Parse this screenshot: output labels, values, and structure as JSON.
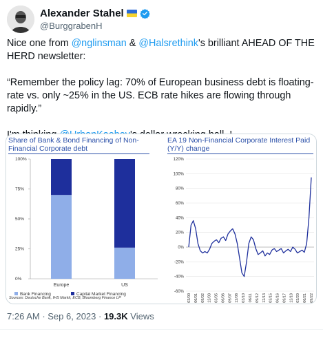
{
  "author": {
    "name": "Alexander Stahel",
    "handle": "@BurggrabenH",
    "avatar_icon": "avatar-icon",
    "flag_icon": "ukraine-flag-icon",
    "verified_icon": "verified-badge-icon",
    "verified_color": "#1d9bf0"
  },
  "tweet": {
    "p1": {
      "t1": "Nice one from ",
      "m1": "@nglinsman",
      "t2": " & ",
      "m2": "@Halsrethink",
      "t3": "'s brilliant AHEAD OF THE HERD newsletter:"
    },
    "p2": "“Remember the policy lag: 70% of European business debt is floating-rate vs. only ~25% in the US. ECB rate hikes are flowing through rapidly.”",
    "p3": {
      "t1": "I'm thinking ",
      "m1": "@UrbanKaoboy",
      "t2": "'s dollar wrecking ball..!"
    },
    "mention_color": "#1d9bf0"
  },
  "media": {
    "left": {
      "title_line1": "Share of Bank & Bond Financing of Non-",
      "title_line2": "Financial Corporate debt",
      "source": "Sources: Deutsche Bank, IHS Markit, ECB, Bloomberg Finance LP"
    },
    "right": {
      "title_line1": "EA 19 Non-Financial Corporate Interest Paid",
      "title_line2": "(Y/Y) change"
    },
    "title_color": "#2a4fa8"
  },
  "chart_data": [
    {
      "type": "bar",
      "stacked": true,
      "categories": [
        "Europe",
        "US"
      ],
      "series": [
        {
          "name": "Bank Financing",
          "values": [
            70,
            26
          ],
          "color": "#8faee8"
        },
        {
          "name": "Capital Market Financing",
          "values": [
            30,
            74
          ],
          "color": "#1e2f9c"
        }
      ],
      "ylim": [
        0,
        100
      ],
      "yticks": [
        "0%",
        "25%",
        "50%",
        "75%",
        "100%"
      ],
      "yticks_values": [
        0,
        25,
        50,
        75,
        100
      ],
      "legend_position": "bottom",
      "grid": false
    },
    {
      "type": "line",
      "series": [
        {
          "values": [
            0,
            30,
            36,
            25,
            5,
            -5,
            -8,
            -6,
            -8,
            -3,
            5,
            8,
            10,
            6,
            12,
            14,
            9,
            18,
            22,
            25,
            18,
            5,
            -15,
            -35,
            -40,
            -20,
            5,
            14,
            10,
            -2,
            -10,
            -8,
            -5,
            -12,
            -8,
            -10,
            -4,
            -2,
            -6,
            -4,
            -2,
            -8,
            -5,
            -3,
            -6,
            0,
            -3,
            -8,
            -6,
            -4,
            -7,
            5,
            40,
            95
          ],
          "color": "#1e2f9c"
        }
      ],
      "ylim": [
        -60,
        120
      ],
      "yticks": [
        "-60%",
        "-40%",
        "-20%",
        "0%",
        "20%",
        "40%",
        "60%",
        "80%",
        "100%",
        "120%"
      ],
      "yticks_values": [
        -60,
        -40,
        -20,
        0,
        20,
        40,
        60,
        80,
        100,
        120
      ],
      "xticks": [
        "03/00",
        "06/01",
        "09/02",
        "12/03",
        "03/05",
        "06/06",
        "09/07",
        "12/08",
        "03/10",
        "06/11",
        "09/12",
        "12/13",
        "03/15",
        "06/16",
        "09/17",
        "12/18",
        "03/20",
        "06/21",
        "09/22"
      ],
      "grid": true
    }
  ],
  "meta": {
    "time": "7:26 AM",
    "sep": " · ",
    "date": "Sep 6, 2023",
    "sep2": " · ",
    "views_count": "19.3K",
    "views_label": " Views"
  }
}
